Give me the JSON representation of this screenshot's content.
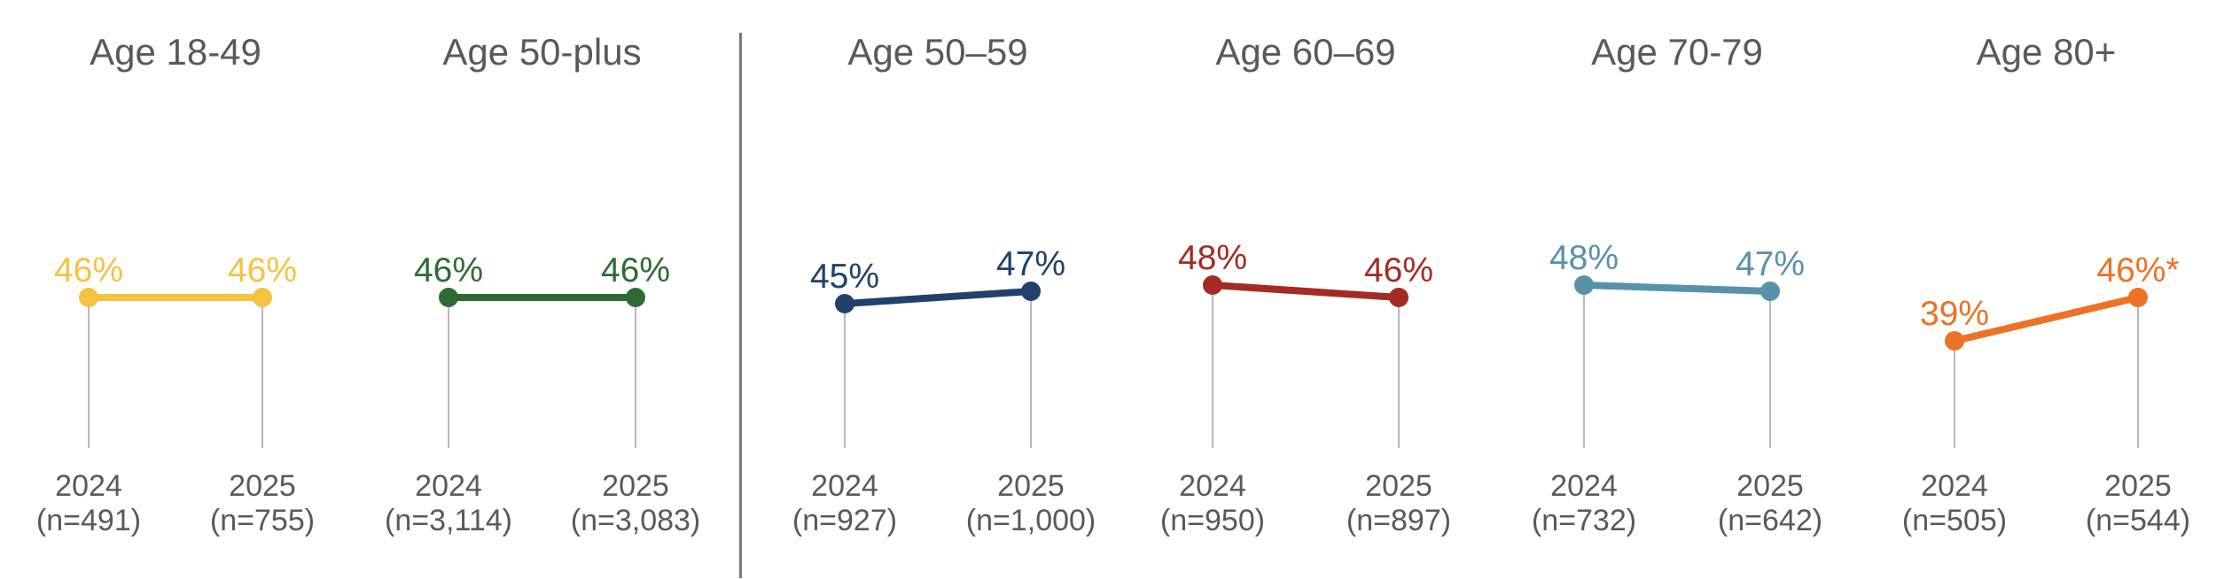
{
  "chart_data": {
    "type": "line",
    "description_visible_text_only": true,
    "x_categories": [
      "2024",
      "2025"
    ],
    "value_unit": "%",
    "value_axis_hidden": true,
    "grid": false,
    "legend": false,
    "layout_hints": {
      "panel_count": 6,
      "divider_between": [
        "Age 50-plus",
        "Age 50–59"
      ],
      "labels_above_points": true,
      "stems_below_points": true
    },
    "panels": [
      {
        "title": "Age 18-49",
        "color": "#F5C242",
        "points": [
          {
            "year": "2024",
            "n_label": "(n=491)",
            "value": 46,
            "value_label": "46%"
          },
          {
            "year": "2025",
            "n_label": "(n=755)",
            "value": 46,
            "value_label": "46%"
          }
        ]
      },
      {
        "title": "Age 50-plus",
        "color": "#2E6B34",
        "points": [
          {
            "year": "2024",
            "n_label": "(n=3,114)",
            "value": 46,
            "value_label": "46%"
          },
          {
            "year": "2025",
            "n_label": "(n=3,083)",
            "value": 46,
            "value_label": "46%"
          }
        ]
      },
      {
        "title": "Age 50–59",
        "color": "#20406E",
        "points": [
          {
            "year": "2024",
            "n_label": "(n=927)",
            "value": 45,
            "value_label": "45%"
          },
          {
            "year": "2025",
            "n_label": "(n=1,000)",
            "value": 47,
            "value_label": "47%"
          }
        ]
      },
      {
        "title": "Age 60–69",
        "color": "#A32B23",
        "points": [
          {
            "year": "2024",
            "n_label": "(n=950)",
            "value": 48,
            "value_label": "48%"
          },
          {
            "year": "2025",
            "n_label": "(n=897)",
            "value": 46,
            "value_label": "46%"
          }
        ]
      },
      {
        "title": "Age 70-79",
        "color": "#5792AA",
        "points": [
          {
            "year": "2024",
            "n_label": "(n=732)",
            "value": 48,
            "value_label": "48%"
          },
          {
            "year": "2025",
            "n_label": "(n=642)",
            "value": 47,
            "value_label": "47%"
          }
        ]
      },
      {
        "title": "Age 80+",
        "color": "#EE7125",
        "points": [
          {
            "year": "2024",
            "n_label": "(n=505)",
            "value": 39,
            "value_label": "39%"
          },
          {
            "year": "2025",
            "n_label": "(n=544)",
            "value": 46,
            "value_label": "46%*"
          }
        ]
      }
    ]
  },
  "colors": {
    "text_gray": "#58595B",
    "stem_gray": "#B9B9B9",
    "divider_gray": "#77787A",
    "background": "#FFFFFF"
  }
}
